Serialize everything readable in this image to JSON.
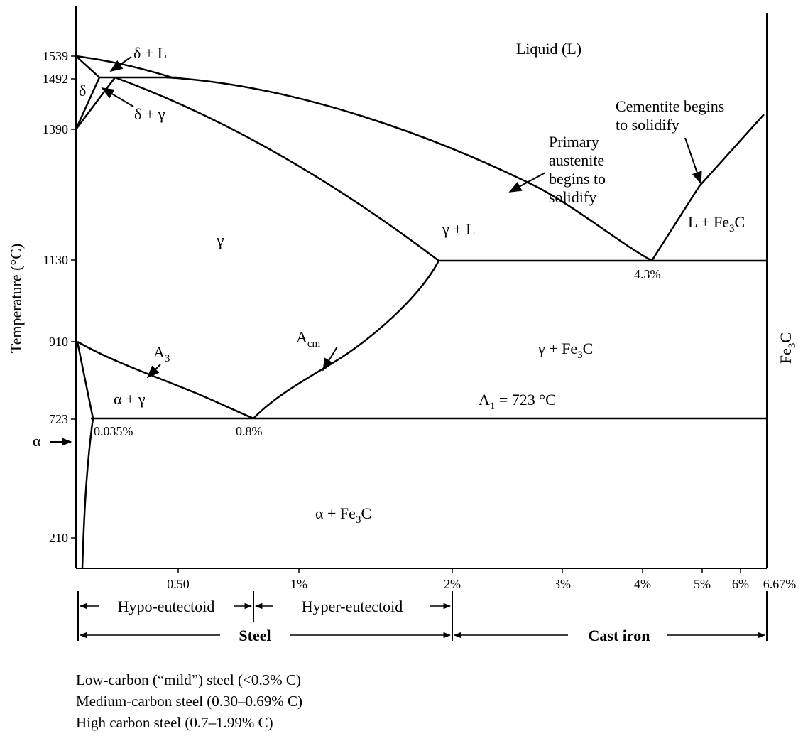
{
  "axes": {
    "ylabel": "Temperature (°C)",
    "right_label_main": "Fe",
    "right_label_sub": "3",
    "right_label_end": "C",
    "y_ticks": [
      "1539",
      "1492",
      "1390",
      "1130",
      "910",
      "723",
      "210"
    ],
    "x_ticks": [
      "0.50",
      "1%",
      "2%",
      "3%",
      "4%",
      "5%",
      "6%",
      "6.67%"
    ]
  },
  "regions": {
    "liquid": "Liquid (L)",
    "delta_l": "δ + L",
    "delta": "δ",
    "delta_gamma": "δ + γ",
    "gamma": "γ",
    "gamma_l": "γ + L",
    "l_fe3c": "L + Fe",
    "l_fe3c_sub": "3",
    "l_fe3c_end": "C",
    "gamma_fe3c": "γ + Fe",
    "gamma_fe3c_sub": "3",
    "gamma_fe3c_end": "C",
    "alpha_gamma": "α + γ",
    "alpha": "α",
    "alpha_fe3c": "α + Fe",
    "alpha_fe3c_sub": "3",
    "alpha_fe3c_end": "C"
  },
  "annotations": {
    "a3_main": "A",
    "a3_sub": "3",
    "acm_main": "A",
    "acm_sub": "cm",
    "a1_main": "A",
    "a1_sub": "1",
    "a1_end": " = 723 °C",
    "pct_0035": "0.035%",
    "pct_08": "0.8%",
    "pct_43": "4.3%",
    "primary_austenite": [
      "Primary",
      "austenite",
      "begins to",
      "solidify"
    ],
    "cementite": [
      "Cementite begins",
      "to solidify"
    ]
  },
  "classes": {
    "hypo": "Hypo-eutectoid",
    "hyper": "Hyper-eutectoid",
    "steel": "Steel",
    "cast_iron": "Cast iron"
  },
  "notes": [
    "Low-carbon (“mild”) steel (<0.3% C)",
    "Medium-carbon steel (0.30–0.69% C)",
    "High carbon steel (0.7–1.99% C)"
  ]
}
